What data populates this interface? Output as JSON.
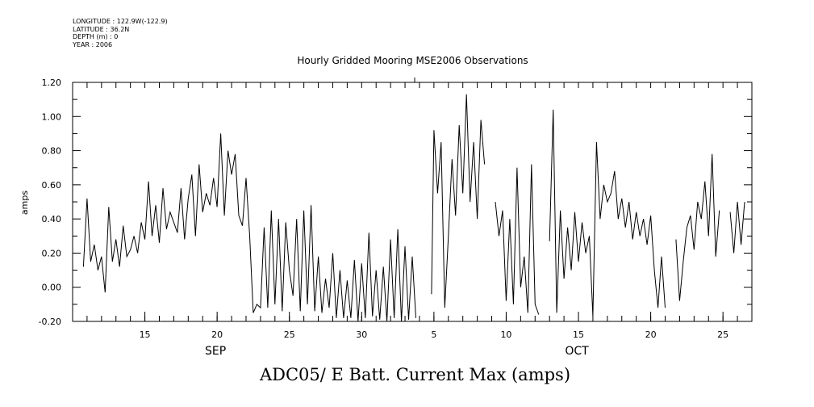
{
  "meta": {
    "longitude": "LONGITUDE : 122.9W(-122.9)",
    "latitude": "LATITUDE : 36.2N",
    "depth": "DEPTH (m) : 0",
    "year": "YEAR : 2006"
  },
  "chart_data": {
    "type": "line",
    "title": "Hourly Gridded Mooring MSE2006 Observations",
    "xlabel": "ADC05/ E Batt. Current Max (amps)",
    "ylabel": "amps",
    "ylim": [
      -0.2,
      1.2
    ],
    "yticks": [
      "-0.20",
      "0.00",
      "0.20",
      "0.40",
      "0.60",
      "0.80",
      "1.00",
      "1.20"
    ],
    "xlim": [
      "2006-09-10",
      "2006-10-27"
    ],
    "xticks": [
      {
        "date": "2006-09-15",
        "label": "15"
      },
      {
        "date": "2006-09-20",
        "label": "20"
      },
      {
        "date": "2006-09-25",
        "label": "25"
      },
      {
        "date": "2006-09-30",
        "label": "30"
      },
      {
        "date": "2006-10-05",
        "label": "5"
      },
      {
        "date": "2006-10-10",
        "label": "10"
      },
      {
        "date": "2006-10-15",
        "label": "15"
      },
      {
        "date": "2006-10-20",
        "label": "20"
      },
      {
        "date": "2006-10-25",
        "label": "25"
      }
    ],
    "month_labels": [
      {
        "date": "2006-09-20",
        "label": "SEP"
      },
      {
        "date": "2006-10-15",
        "label": "OCT"
      }
    ],
    "grid": false,
    "series": [
      {
        "x": [
          "2006-09-10 18:00",
          "2006-09-11 00:00",
          "2006-09-11 06:00",
          "2006-09-11 12:00",
          "2006-09-11 18:00",
          "2006-09-12 00:00",
          "2006-09-12 06:00",
          "2006-09-12 12:00",
          "2006-09-12 18:00",
          "2006-09-13 00:00",
          "2006-09-13 06:00",
          "2006-09-13 12:00",
          "2006-09-13 18:00",
          "2006-09-14 00:00",
          "2006-09-14 06:00",
          "2006-09-14 12:00",
          "2006-09-14 18:00",
          "2006-09-15 00:00",
          "2006-09-15 06:00",
          "2006-09-15 12:00",
          "2006-09-15 18:00",
          "2006-09-16 00:00",
          "2006-09-16 06:00",
          "2006-09-16 12:00",
          "2006-09-16 18:00",
          "2006-09-17 00:00",
          "2006-09-17 06:00",
          "2006-09-17 12:00",
          "2006-09-17 18:00",
          "2006-09-18 00:00",
          "2006-09-18 06:00",
          "2006-09-18 12:00",
          "2006-09-18 18:00",
          "2006-09-19 00:00",
          "2006-09-19 06:00",
          "2006-09-19 12:00",
          "2006-09-19 18:00",
          "2006-09-20 00:00",
          "2006-09-20 06:00",
          "2006-09-20 12:00",
          "2006-09-20 18:00",
          "2006-09-21 00:00",
          "2006-09-21 06:00",
          "2006-09-21 12:00",
          "2006-09-21 18:00",
          "2006-09-22 00:00",
          "2006-09-22 06:00",
          "2006-09-22 12:00",
          "2006-09-22 18:00",
          "2006-09-23 00:00",
          "2006-09-23 06:00",
          "2006-09-23 12:00",
          "2006-09-23 18:00",
          "2006-09-24 00:00",
          "2006-09-24 06:00",
          "2006-09-24 12:00",
          "2006-09-24 18:00",
          "2006-09-25 00:00",
          "2006-09-25 06:00",
          "2006-09-25 12:00",
          "2006-09-25 18:00",
          "2006-09-26 00:00",
          "2006-09-26 06:00",
          "2006-09-26 12:00",
          "2006-09-26 18:00",
          "2006-09-27 00:00",
          "2006-09-27 06:00",
          "2006-09-27 12:00",
          "2006-09-27 18:00",
          "2006-09-28 00:00",
          "2006-09-28 06:00",
          "2006-09-28 12:00",
          "2006-09-28 18:00",
          "2006-09-29 00:00",
          "2006-09-29 06:00",
          "2006-09-29 12:00",
          "2006-09-29 18:00",
          "2006-09-30 00:00",
          "2006-09-30 06:00",
          "2006-09-30 12:00",
          "2006-09-30 18:00",
          "2006-10-01 00:00",
          "2006-10-01 06:00",
          "2006-10-01 12:00",
          "2006-10-01 18:00",
          "2006-10-02 00:00",
          "2006-10-02 06:00",
          "2006-10-02 12:00",
          "2006-10-02 18:00",
          "2006-10-03 00:00",
          "2006-10-03 06:00",
          "2006-10-03 12:00",
          "2006-10-03 18:00"
        ],
        "y": [
          0.12,
          0.52,
          0.15,
          0.25,
          0.1,
          0.18,
          -0.03,
          0.47,
          0.15,
          0.28,
          0.12,
          0.36,
          0.18,
          0.22,
          0.3,
          0.2,
          0.38,
          0.28,
          0.62,
          0.3,
          0.48,
          0.26,
          0.58,
          0.34,
          0.44,
          0.38,
          0.32,
          0.58,
          0.28,
          0.52,
          0.66,
          0.3,
          0.72,
          0.44,
          0.55,
          0.48,
          0.64,
          0.47,
          0.9,
          0.42,
          0.8,
          0.66,
          0.78,
          0.42,
          0.36,
          0.64,
          0.3,
          -0.15,
          -0.1,
          -0.12,
          0.35,
          -0.12,
          0.45,
          -0.1,
          0.4,
          -0.14,
          0.38,
          0.1,
          -0.05,
          0.4,
          -0.14,
          0.45,
          -0.1,
          0.48,
          -0.14,
          0.18,
          -0.15,
          0.05,
          -0.12,
          0.2,
          -0.18,
          0.1,
          -0.18,
          0.04,
          -0.18,
          0.16,
          -0.2,
          0.14,
          -0.18,
          0.32,
          -0.17,
          0.1,
          -0.19,
          0.12,
          -0.2,
          0.28,
          -0.18,
          0.34,
          -0.2,
          0.24,
          -0.19,
          0.18,
          -0.18
        ]
      },
      {
        "x": [
          "2006-10-04 20:00",
          "2006-10-05 00:00",
          "2006-10-05 06:00",
          "2006-10-05 12:00",
          "2006-10-05 18:00",
          "2006-10-06 00:00",
          "2006-10-06 06:00",
          "2006-10-06 12:00",
          "2006-10-06 18:00",
          "2006-10-07 00:00",
          "2006-10-07 06:00",
          "2006-10-07 12:00",
          "2006-10-07 18:00",
          "2006-10-08 00:00",
          "2006-10-08 06:00",
          "2006-10-08 12:00",
          "2006-10-08 18:00",
          "2006-10-09 00:00",
          "2006-10-09 06:00",
          "2006-10-09 12:00",
          "2006-10-09 18:00",
          "2006-10-10 00:00",
          "2006-10-10 06:00",
          "2006-10-10 12:00",
          "2006-10-10 18:00",
          "2006-10-11 00:00",
          "2006-10-11 06:00",
          "2006-10-11 12:00",
          "2006-10-11 18:00",
          "2006-10-12 00:00",
          "2006-10-12 06:00",
          "2006-10-12 12:00",
          "2006-10-12 18:00",
          "2006-10-13 00:00",
          "2006-10-13 06:00",
          "2006-10-13 12:00",
          "2006-10-13 18:00",
          "2006-10-14 00:00",
          "2006-10-14 06:00",
          "2006-10-14 12:00",
          "2006-10-14 18:00",
          "2006-10-15 00:00",
          "2006-10-15 06:00",
          "2006-10-15 12:00",
          "2006-10-15 18:00",
          "2006-10-16 00:00",
          "2006-10-16 06:00",
          "2006-10-16 12:00",
          "2006-10-16 18:00",
          "2006-10-17 00:00",
          "2006-10-17 06:00",
          "2006-10-17 12:00",
          "2006-10-17 18:00",
          "2006-10-18 00:00",
          "2006-10-18 06:00",
          "2006-10-18 12:00",
          "2006-10-18 18:00",
          "2006-10-19 00:00",
          "2006-10-19 06:00",
          "2006-10-19 12:00",
          "2006-10-19 18:00",
          "2006-10-20 00:00",
          "2006-10-20 06:00",
          "2006-10-20 12:00",
          "2006-10-20 18:00",
          "2006-10-21 00:00",
          "2006-10-21 06:00",
          "2006-10-21 12:00",
          "2006-10-21 18:00",
          "2006-10-22 00:00",
          "2006-10-22 06:00",
          "2006-10-22 12:00",
          "2006-10-22 18:00",
          "2006-10-23 00:00",
          "2006-10-23 06:00",
          "2006-10-23 12:00",
          "2006-10-23 18:00",
          "2006-10-24 00:00",
          "2006-10-24 06:00",
          "2006-10-24 12:00",
          "2006-10-24 18:00",
          "2006-10-25 00:00",
          "2006-10-25 06:00",
          "2006-10-25 12:00",
          "2006-10-25 18:00",
          "2006-10-26 00:00",
          "2006-10-26 06:00",
          "2006-10-26 12:00"
        ],
        "y": [
          -0.04,
          0.92,
          0.55,
          0.85,
          -0.12,
          0.3,
          0.75,
          0.42,
          0.95,
          0.55,
          1.13,
          0.5,
          0.85,
          0.4,
          0.98,
          0.72,
          null,
          null,
          0.5,
          0.3,
          0.45,
          -0.08,
          0.4,
          -0.1,
          0.7,
          0.0,
          0.18,
          -0.15,
          0.72,
          -0.1,
          -0.16,
          null,
          null,
          0.27,
          1.04,
          -0.15,
          0.45,
          0.05,
          0.35,
          0.1,
          0.44,
          0.15,
          0.38,
          0.2,
          0.3,
          -0.17,
          0.85,
          0.4,
          0.6,
          0.5,
          0.55,
          0.68,
          0.4,
          0.52,
          0.35,
          0.5,
          0.28,
          0.44,
          0.3,
          0.4,
          0.25,
          0.42,
          0.1,
          -0.12,
          0.18,
          -0.12,
          null,
          null,
          0.28,
          -0.08,
          0.15,
          0.35,
          0.42,
          0.22,
          0.5,
          0.4,
          0.62,
          0.3,
          0.78,
          0.18,
          0.45,
          null,
          null,
          0.44,
          0.2,
          0.5,
          0.25,
          0.5
        ]
      }
    ]
  }
}
